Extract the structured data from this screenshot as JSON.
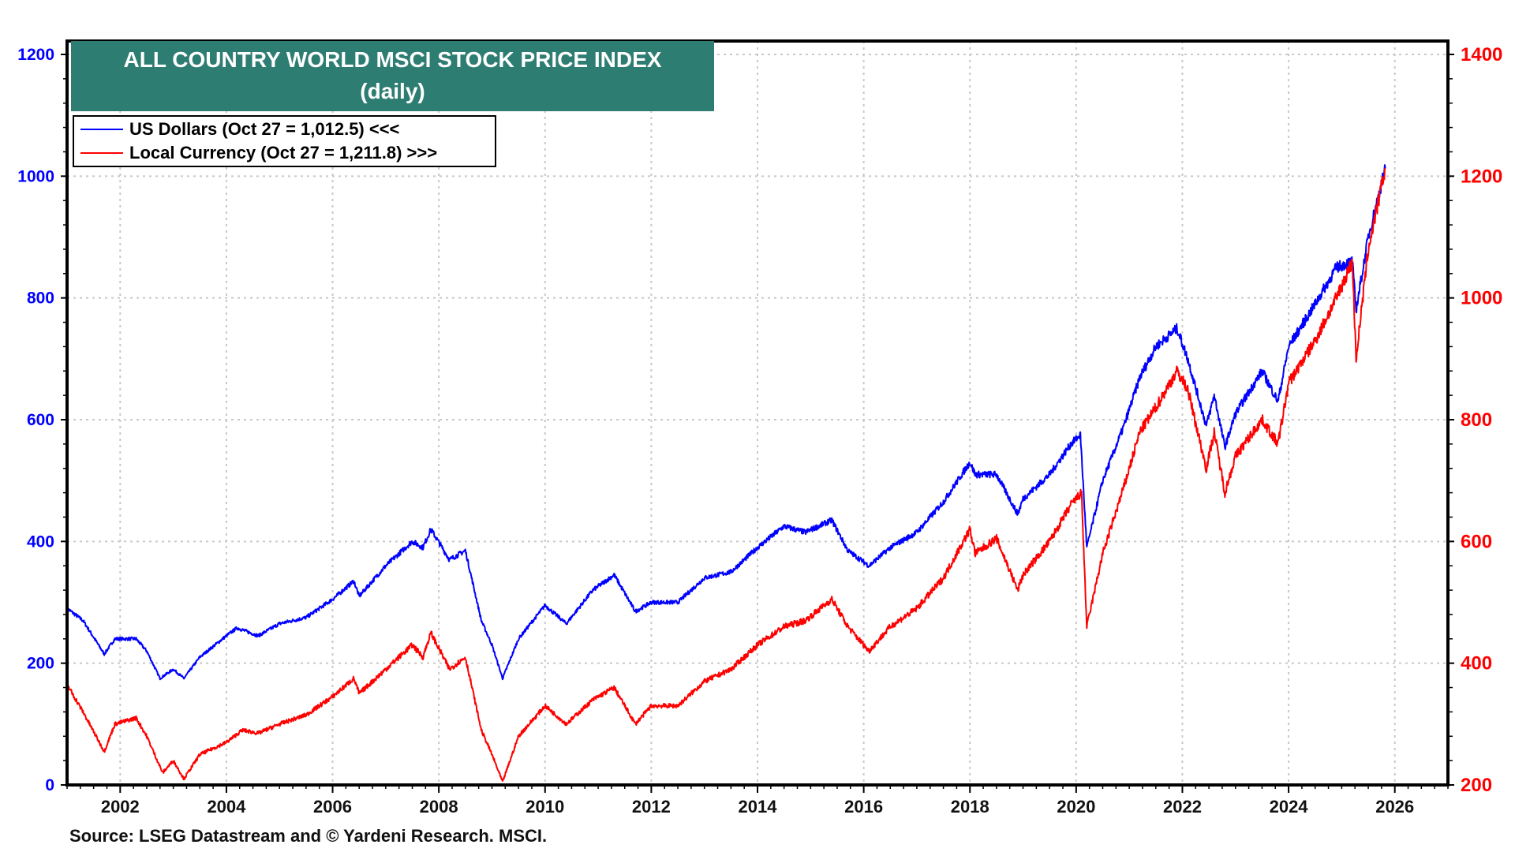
{
  "chart_data": {
    "type": "line",
    "title": "ALL COUNTRY WORLD MSCI STOCK PRICE INDEX",
    "subtitle": "(daily)",
    "source": "Source: LSEG Datastream and © Yardeni Research. MSCI.",
    "xlabel": "",
    "xlim": [
      2001.0,
      2027.0
    ],
    "xticks": [
      "2002",
      "2004",
      "2006",
      "2008",
      "2010",
      "2012",
      "2014",
      "2016",
      "2018",
      "2020",
      "2022",
      "2024",
      "2026"
    ],
    "grid": true,
    "legend_position": "top-left",
    "axes": {
      "left": {
        "label": "",
        "ylim": [
          0,
          1200
        ],
        "ticks": [
          "0",
          "200",
          "400",
          "600",
          "800",
          "1000",
          "1200"
        ],
        "color": "#0000ff"
      },
      "right": {
        "label": "",
        "ylim": [
          200,
          1400
        ],
        "ticks": [
          "200",
          "400",
          "600",
          "800",
          "1000",
          "1200",
          "1400"
        ],
        "color": "#ff0000"
      }
    },
    "series": [
      {
        "name": "US Dollars (Oct 27 = 1,012.5) <<<",
        "axis": "left",
        "color": "#0000ff",
        "x": [
          2001.0,
          2001.3,
          2001.7,
          2001.9,
          2002.3,
          2002.5,
          2002.75,
          2003.0,
          2003.2,
          2003.5,
          2004.0,
          2004.2,
          2004.6,
          2005.0,
          2005.5,
          2006.0,
          2006.4,
          2006.5,
          2007.0,
          2007.5,
          2007.7,
          2007.85,
          2008.2,
          2008.5,
          2008.8,
          2009.0,
          2009.2,
          2009.5,
          2010.0,
          2010.4,
          2010.9,
          2011.3,
          2011.7,
          2012.0,
          2012.5,
          2013.0,
          2013.5,
          2014.0,
          2014.5,
          2014.9,
          2015.4,
          2015.7,
          2016.1,
          2016.5,
          2017.0,
          2017.5,
          2018.0,
          2018.1,
          2018.5,
          2018.9,
          2019.0,
          2019.5,
          2019.9,
          2020.08,
          2020.2,
          2020.5,
          2020.9,
          2021.2,
          2021.5,
          2021.9,
          2022.1,
          2022.45,
          2022.6,
          2022.8,
          2023.0,
          2023.5,
          2023.8,
          2024.0,
          2024.5,
          2024.9,
          2025.2,
          2025.27,
          2025.5,
          2025.82
        ],
        "values": [
          290,
          270,
          215,
          240,
          240,
          220,
          175,
          190,
          175,
          210,
          245,
          258,
          245,
          265,
          275,
          305,
          335,
          310,
          360,
          400,
          390,
          420,
          370,
          385,
          270,
          230,
          175,
          240,
          295,
          265,
          320,
          345,
          285,
          300,
          300,
          340,
          350,
          390,
          425,
          415,
          435,
          385,
          360,
          390,
          415,
          465,
          530,
          510,
          510,
          445,
          470,
          510,
          560,
          575,
          390,
          500,
          590,
          670,
          720,
          750,
          700,
          590,
          640,
          555,
          610,
          680,
          630,
          720,
          790,
          850,
          860,
          780,
          900,
          1012.5
        ]
      },
      {
        "name": "Local Currency (Oct 27 = 1,211.8) >>>",
        "axis": "right",
        "color": "#ff0000",
        "x": [
          2001.0,
          2001.3,
          2001.7,
          2001.9,
          2002.3,
          2002.5,
          2002.8,
          2003.0,
          2003.2,
          2003.5,
          2004.0,
          2004.3,
          2004.6,
          2005.0,
          2005.5,
          2006.0,
          2006.4,
          2006.5,
          2007.0,
          2007.5,
          2007.7,
          2007.85,
          2008.2,
          2008.5,
          2008.8,
          2009.0,
          2009.2,
          2009.5,
          2010.0,
          2010.4,
          2010.9,
          2011.3,
          2011.7,
          2012.0,
          2012.5,
          2013.0,
          2013.5,
          2014.0,
          2014.5,
          2014.9,
          2015.4,
          2015.7,
          2016.1,
          2016.5,
          2017.0,
          2017.5,
          2018.0,
          2018.1,
          2018.5,
          2018.9,
          2019.0,
          2019.5,
          2019.9,
          2020.1,
          2020.2,
          2020.5,
          2020.9,
          2021.2,
          2021.5,
          2021.9,
          2022.1,
          2022.45,
          2022.6,
          2022.8,
          2023.0,
          2023.5,
          2023.8,
          2024.0,
          2024.5,
          2024.9,
          2025.2,
          2025.27,
          2025.5,
          2025.82
        ],
        "values": [
          365,
          320,
          255,
          300,
          310,
          280,
          220,
          240,
          210,
          250,
          270,
          290,
          285,
          300,
          315,
          345,
          375,
          350,
          390,
          430,
          410,
          450,
          390,
          410,
          290,
          250,
          205,
          280,
          330,
          300,
          340,
          360,
          300,
          330,
          330,
          370,
          390,
          430,
          460,
          470,
          505,
          460,
          420,
          460,
          490,
          540,
          620,
          580,
          605,
          520,
          545,
          600,
          660,
          680,
          460,
          580,
          690,
          780,
          820,
          880,
          850,
          720,
          780,
          680,
          740,
          800,
          760,
          860,
          930,
          1000,
          1060,
          900,
          1080,
          1211.8
        ]
      }
    ]
  },
  "legend": {
    "items": [
      {
        "label": "US Dollars (Oct 27 = 1,012.5) <<<",
        "color": "#0000ff"
      },
      {
        "label": "Local Currency (Oct 27 = 1,211.8) >>>",
        "color": "#ff0000"
      }
    ]
  },
  "colors": {
    "title_bg": "#2e7d72",
    "left_axis": "#0000ff",
    "right_axis": "#ff0000"
  }
}
